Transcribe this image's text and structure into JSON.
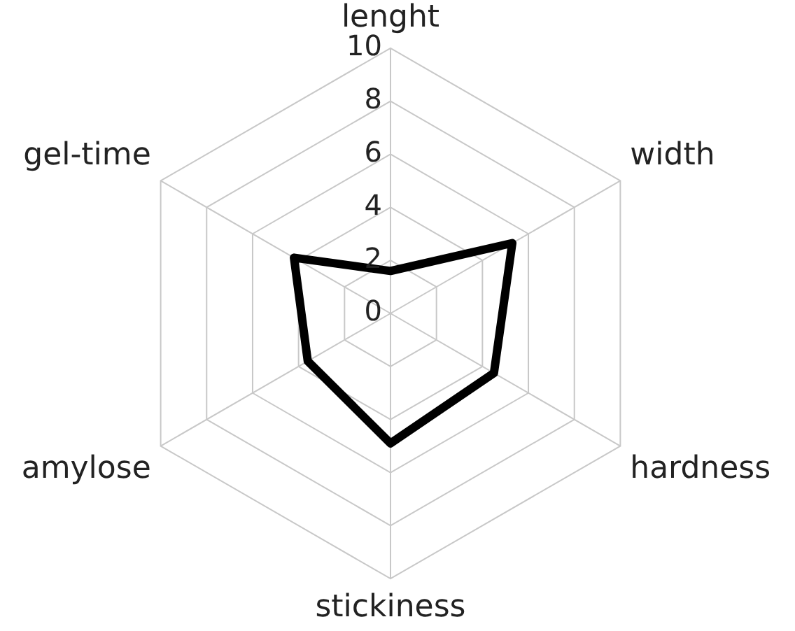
{
  "chart_data": {
    "type": "radar",
    "categories": [
      "lenght",
      "width",
      "hardness",
      "stickiness",
      "amylose",
      "gel-time"
    ],
    "series": [
      {
        "color": "#000000",
        "values": [
          1.6,
          5.3,
          4.5,
          4.9,
          3.6,
          4.2
        ]
      }
    ],
    "ylim": [
      0,
      10
    ],
    "yticks": [
      0,
      2,
      4,
      6,
      8,
      10
    ],
    "grid": true,
    "legend": false,
    "marker": "none",
    "line_style": "solid"
  }
}
